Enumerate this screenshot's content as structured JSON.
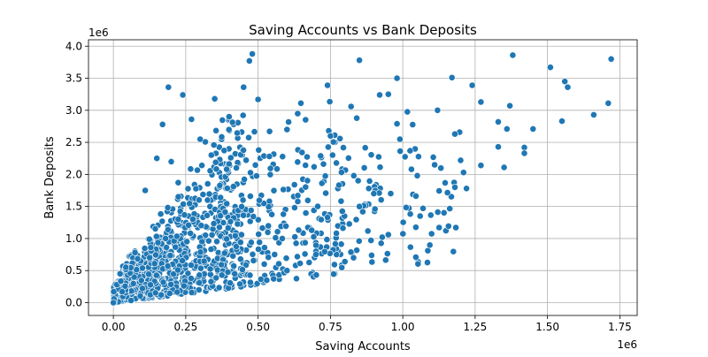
{
  "chart_data": {
    "type": "scatter",
    "title": "Saving Accounts vs Bank Deposits",
    "xlabel": "Saving Accounts",
    "ylabel": "Bank Deposits",
    "x_offset_label": "1e6",
    "y_offset_label": "1e6",
    "xlim": [
      -0.086,
      1.81
    ],
    "ylim": [
      -0.2,
      4.1
    ],
    "xticks": [
      0.0,
      0.25,
      0.5,
      0.75,
      1.0,
      1.25,
      1.5,
      1.75
    ],
    "xtick_labels": [
      "0.00",
      "0.25",
      "0.50",
      "0.75",
      "1.00",
      "1.25",
      "1.50",
      "1.75"
    ],
    "yticks": [
      0.0,
      0.5,
      1.0,
      1.5,
      2.0,
      2.5,
      3.0,
      3.5,
      4.0
    ],
    "ytick_labels": [
      "0.0",
      "0.5",
      "1.0",
      "1.5",
      "2.0",
      "2.5",
      "3.0",
      "3.5",
      "4.0"
    ],
    "grid": true,
    "marker_color": "#1f77b4",
    "marker_edge_color": "#ffffff",
    "point_count": 1300,
    "representative_points": [
      [
        0.48,
        3.88
      ],
      [
        0.47,
        3.77
      ],
      [
        0.85,
        3.78
      ],
      [
        1.38,
        3.86
      ],
      [
        1.72,
        3.8
      ],
      [
        1.51,
        3.67
      ],
      [
        0.98,
        3.5
      ],
      [
        1.17,
        3.51
      ],
      [
        1.56,
        3.45
      ],
      [
        1.57,
        3.36
      ],
      [
        0.19,
        3.36
      ],
      [
        0.24,
        3.24
      ],
      [
        0.92,
        3.24
      ],
      [
        0.95,
        3.25
      ],
      [
        1.24,
        3.39
      ],
      [
        0.45,
        3.36
      ],
      [
        0.74,
        3.39
      ],
      [
        0.35,
        3.18
      ],
      [
        0.5,
        3.17
      ],
      [
        1.27,
        3.13
      ],
      [
        1.37,
        3.07
      ],
      [
        1.71,
        3.11
      ],
      [
        1.66,
        2.93
      ],
      [
        1.55,
        2.83
      ],
      [
        1.12,
        3.0
      ],
      [
        0.27,
        2.86
      ],
      [
        0.17,
        2.78
      ],
      [
        1.33,
        2.82
      ],
      [
        1.36,
        2.71
      ],
      [
        1.45,
        2.71
      ],
      [
        0.98,
        2.79
      ],
      [
        0.99,
        2.55
      ],
      [
        1.18,
        2.63
      ],
      [
        1.42,
        2.42
      ],
      [
        1.42,
        2.33
      ],
      [
        1.33,
        2.43
      ],
      [
        1.27,
        2.14
      ],
      [
        1.35,
        2.11
      ],
      [
        1.2,
        2.22
      ],
      [
        1.21,
        2.03
      ],
      [
        1.18,
        1.8
      ],
      [
        1.22,
        1.78
      ],
      [
        1.11,
        2.15
      ],
      [
        1.03,
        2.08
      ],
      [
        1.05,
        1.98
      ],
      [
        1.06,
        1.35
      ],
      [
        1.07,
        1.47
      ],
      [
        0.95,
        1.06
      ],
      [
        0.89,
        0.97
      ],
      [
        0.83,
        0.7
      ],
      [
        0.8,
        0.64
      ],
      [
        0.7,
        0.8
      ],
      [
        0.6,
        0.5
      ],
      [
        0.53,
        0.35
      ],
      [
        0.7,
        0.75
      ],
      [
        0.15,
        2.25
      ],
      [
        0.2,
        2.2
      ],
      [
        0.11,
        1.75
      ],
      [
        0.0,
        0.0
      ],
      [
        0.9,
        1.7
      ],
      [
        0.85,
        1.5
      ],
      [
        0.75,
        2.6
      ],
      [
        0.6,
        2.7
      ],
      [
        0.4,
        2.9
      ],
      [
        0.3,
        2.55
      ]
    ]
  }
}
